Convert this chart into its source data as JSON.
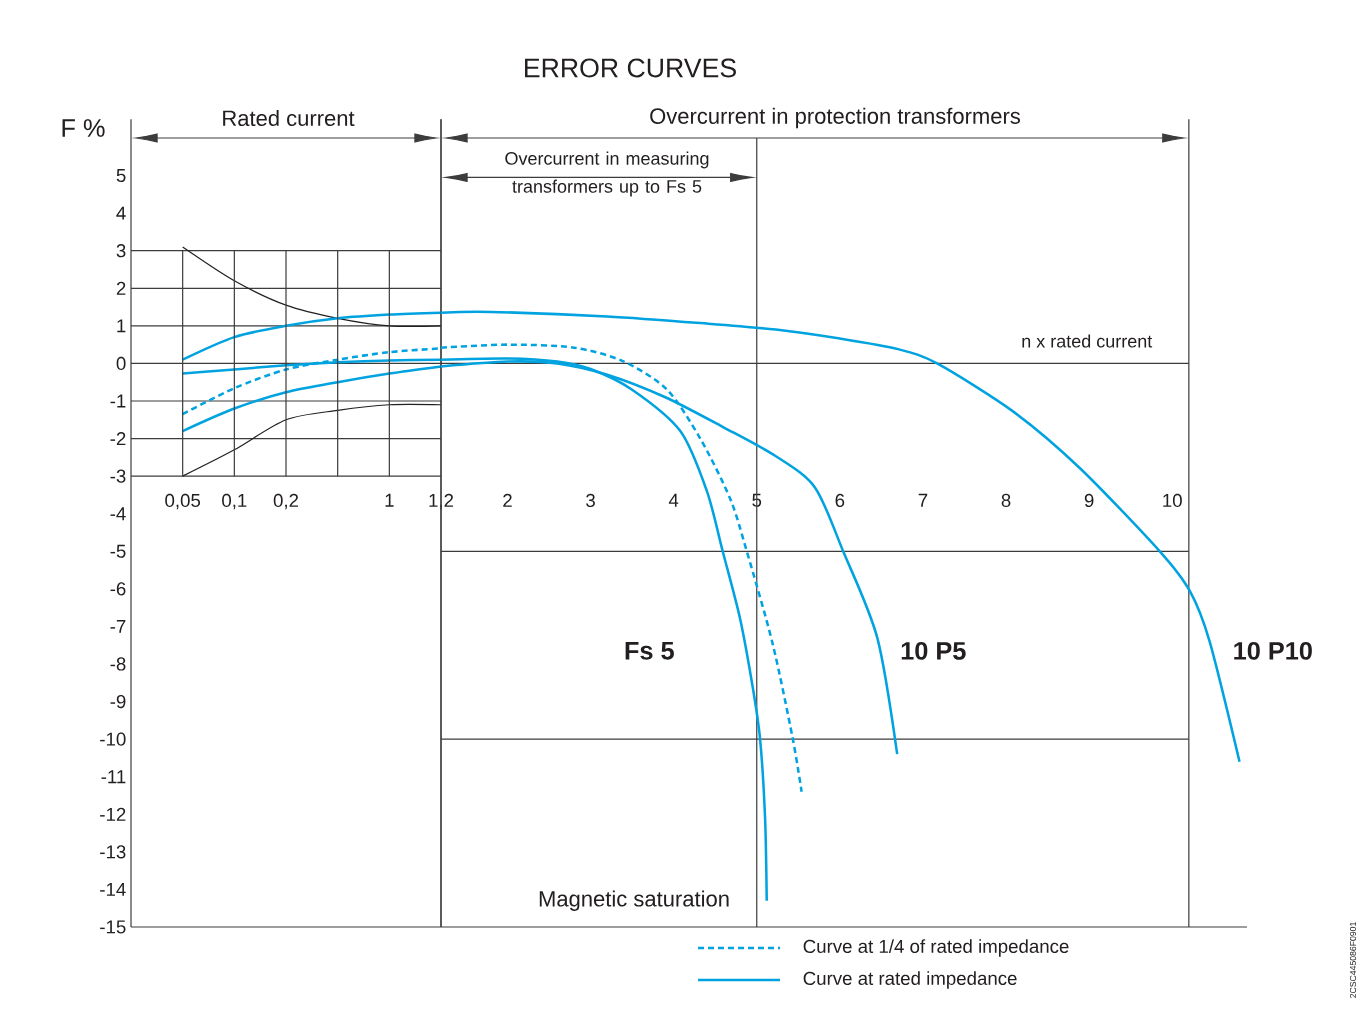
{
  "chart_data": [
    {
      "type": "line",
      "ylabel": "F %",
      "categories": [
        "0,05",
        "0,1",
        "0,2",
        null,
        "1",
        "1,2"
      ],
      "ylim": [
        -15,
        6
      ],
      "yticks": [
        -15,
        -14,
        -13,
        -12,
        -11,
        -10,
        -9,
        -8,
        -7,
        -6,
        -5,
        -4,
        -3,
        -2,
        -1,
        0,
        1,
        2,
        3,
        4,
        5
      ],
      "grid": "y",
      "annotations": [
        "Rated current"
      ],
      "series": [
        {
          "color": "#231f20",
          "values": [
            3.1,
            2.2,
            1.55,
            1.2,
            1.0,
            1.0
          ]
        },
        {
          "color": "#231f20",
          "values": [
            -3,
            -2.3,
            -1.5,
            -1.25,
            -1.1,
            -1.1
          ]
        },
        {
          "color": "#00a3e0",
          "values": [
            0.1,
            0.7,
            1.0,
            1.2,
            1.3,
            1.35
          ]
        },
        {
          "color": "#00a3e0",
          "values": [
            -0.27,
            -0.16,
            -0.05,
            0.03,
            0.08,
            0.1
          ]
        },
        {
          "color": "#00a3e0",
          "line_style": "dashed",
          "values": [
            -1.35,
            -0.66,
            -0.16,
            0.1,
            0.3,
            0.4
          ]
        },
        {
          "color": "#00a3e0",
          "values": [
            -1.8,
            -1.2,
            -0.77,
            -0.5,
            -0.27,
            -0.08
          ]
        }
      ]
    },
    {
      "type": "line",
      "title": "ERROR CURVES",
      "xlabel": "n x rated current",
      "xlim": [
        1.2,
        10.9
      ],
      "xticks": [
        2,
        3,
        4,
        5,
        6,
        7,
        8,
        9,
        10
      ],
      "ylim": [
        -15,
        6
      ],
      "tick_labels": "x",
      "ref_lines": [
        {
          "axis": "x",
          "value": 5
        },
        {
          "axis": "x",
          "value": 10.2
        },
        {
          "axis": "y",
          "value": 0
        },
        {
          "axis": "y",
          "value": -5
        },
        {
          "axis": "y",
          "value": -10
        }
      ],
      "annotations": [
        "Overcurrent in protection transformers",
        "Overcurrent in measuring transformers up to Fs 5",
        "Magnetic saturation",
        "Curve at 1/4  of rated impedance",
        "Curve at rated impedance",
        "2CSC445086F0901"
      ],
      "series": [
        {
          "name": "10 P10",
          "color": "#00a3e0",
          "x": [
            1.2,
            1.8,
            3.2,
            4.4,
            5.23,
            6.0,
            6.7,
            7.17,
            8.08,
            8.89,
            9.85,
            10.21,
            10.45,
            10.81
          ],
          "values": [
            1.35,
            1.37,
            1.25,
            1.06,
            0.9,
            0.66,
            0.38,
            0,
            -1.27,
            -2.79,
            -5.0,
            -6.05,
            -7.4,
            -10.6
          ]
        },
        {
          "name": "Fs 5",
          "color": "#00a3e0",
          "x": [
            1.2,
            2.0,
            2.6,
            3.0,
            3.5,
            4.08,
            4.4,
            4.59,
            4.8,
            4.95,
            5.04,
            5.1,
            5.12
          ],
          "values": [
            0.1,
            0.13,
            0.05,
            -0.15,
            -0.7,
            -1.8,
            -3.4,
            -5.0,
            -6.8,
            -8.6,
            -10.0,
            -12.1,
            -14.3
          ]
        },
        {
          "color": "#00a3e0",
          "line_style": "dashed",
          "x": [
            1.2,
            2.0,
            2.8,
            3.4,
            3.92,
            4.32,
            4.68,
            4.88,
            5.19,
            5.43,
            5.54
          ],
          "values": [
            0.42,
            0.5,
            0.42,
            0.05,
            -0.7,
            -2.0,
            -3.6,
            -5.0,
            -7.45,
            -9.95,
            -11.4
          ]
        },
        {
          "name": "10 P5",
          "color": "#00a3e0",
          "x": [
            1.2,
            2.0,
            2.6,
            3.2,
            3.9,
            4.6,
            5.23,
            5.7,
            6.04,
            6.45,
            6.69
          ],
          "values": [
            -0.08,
            0.05,
            0.0,
            -0.3,
            -0.9,
            -1.7,
            -2.47,
            -3.3,
            -5.0,
            -7.3,
            -10.4
          ]
        }
      ]
    }
  ]
}
